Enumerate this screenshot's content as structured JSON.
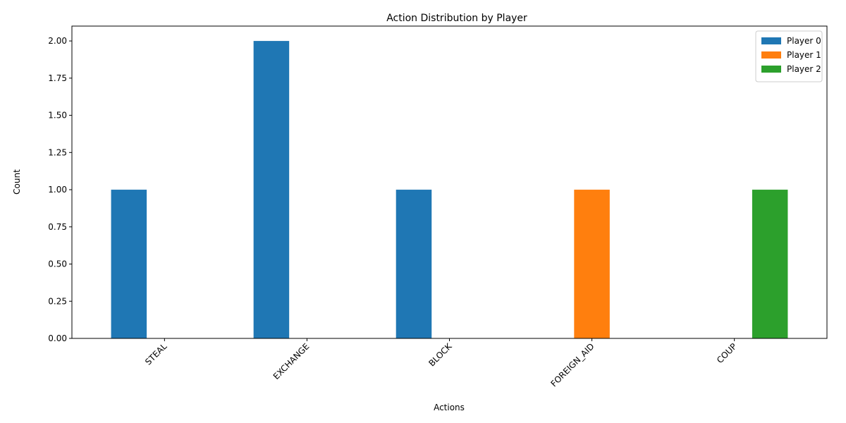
{
  "chart_data": {
    "type": "bar",
    "title": "Action Distribution by Player",
    "xlabel": "Actions",
    "ylabel": "Count",
    "categories": [
      "STEAL",
      "EXCHANGE",
      "BLOCK",
      "FOREIGN_AID",
      "COUP"
    ],
    "series": [
      {
        "name": "Player 0",
        "color": "#1f77b4",
        "values": [
          1,
          2,
          1,
          0,
          0
        ]
      },
      {
        "name": "Player 1",
        "color": "#ff7f0e",
        "values": [
          0,
          0,
          0,
          1,
          0
        ]
      },
      {
        "name": "Player 2",
        "color": "#2ca02c",
        "values": [
          0,
          0,
          0,
          0,
          1
        ]
      }
    ],
    "ylim": [
      0,
      2.1
    ],
    "yticks": [
      "0.00",
      "0.25",
      "0.50",
      "0.75",
      "1.00",
      "1.25",
      "1.50",
      "1.75",
      "2.00"
    ],
    "legend_position": "top-right",
    "grid": false
  }
}
